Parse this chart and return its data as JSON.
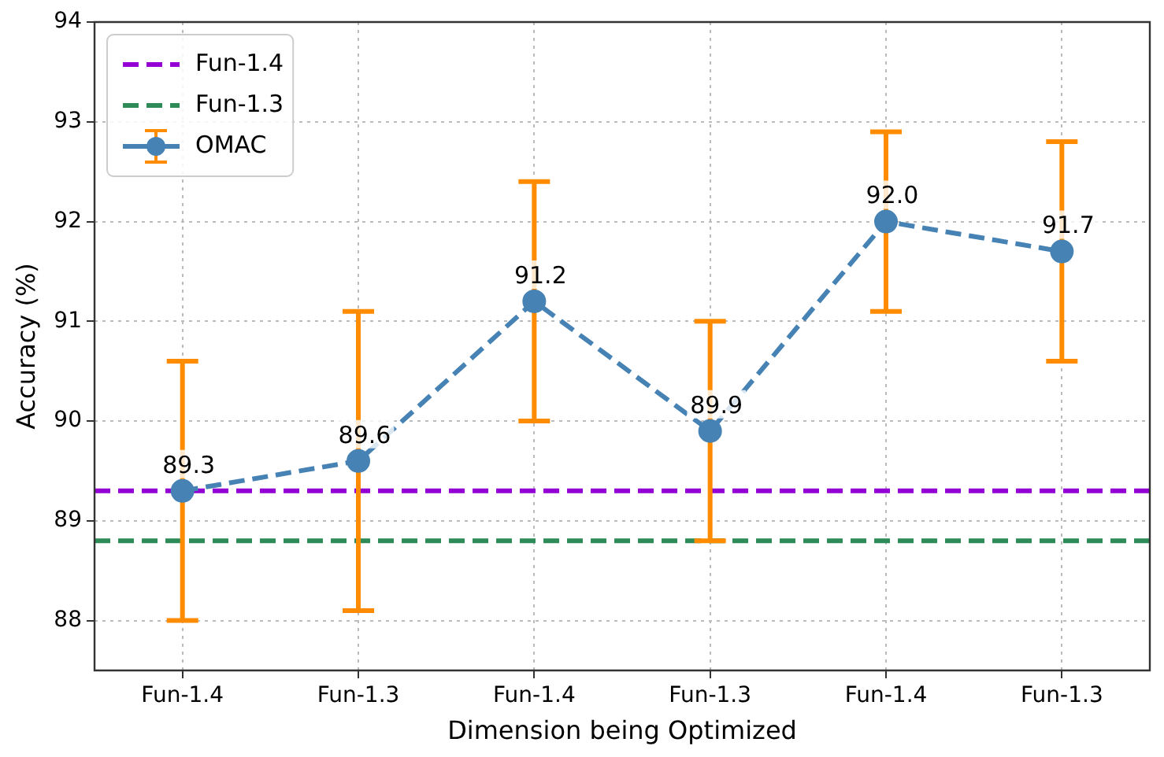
{
  "chart_data": {
    "type": "line",
    "xlabel": "Dimension being Optimized",
    "ylabel": "Accuracy (%)",
    "categories": [
      "Fun-1.4",
      "Fun-1.3",
      "Fun-1.4",
      "Fun-1.3",
      "Fun-1.4",
      "Fun-1.3"
    ],
    "series": [
      {
        "name": "OMAC",
        "color": "#4682b4",
        "values": [
          89.3,
          89.6,
          91.2,
          89.9,
          92.0,
          91.7
        ],
        "value_labels": [
          "89.3",
          "89.6",
          "91.2",
          "89.9",
          "92.0",
          "91.7"
        ],
        "errors": [
          [
            88.0,
            90.6
          ],
          [
            88.1,
            91.1
          ],
          [
            90.0,
            92.4
          ],
          [
            88.8,
            91.0
          ],
          [
            91.1,
            92.9
          ],
          [
            90.6,
            92.8
          ]
        ]
      }
    ],
    "ref_lines": [
      {
        "axis": "y",
        "value": 89.3,
        "label": "Fun-1.4",
        "color": "#9400d3",
        "line_style": "dashed"
      },
      {
        "axis": "y",
        "value": 88.8,
        "label": "Fun-1.3",
        "color": "#2e8b57",
        "line_style": "dashed"
      }
    ],
    "ylim": [
      87.5,
      94
    ],
    "yticks": [
      88,
      89,
      90,
      91,
      92,
      93,
      94
    ],
    "grid": true,
    "legend": "top left",
    "marker": "circle",
    "line_style": "dashed"
  }
}
